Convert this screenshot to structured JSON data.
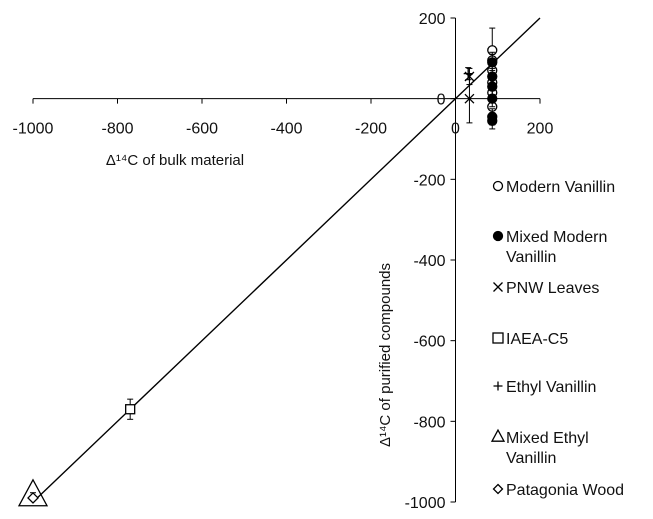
{
  "chart_data": {
    "type": "scatter",
    "xlabel": "Δ¹⁴C of bulk material",
    "ylabel": "Δ¹⁴C of purified compounds",
    "xlim": [
      -1000,
      200
    ],
    "ylim": [
      -1000,
      200
    ],
    "x_ticks": [
      "-1000",
      "-800",
      "-600",
      "-400",
      "-200",
      "0",
      "200"
    ],
    "y_ticks": [
      "200",
      "0",
      "-200",
      "-400",
      "-600",
      "-800",
      "-1000"
    ],
    "grid": false,
    "legend_position": "right",
    "reference_line": {
      "slope": 1,
      "intercept": 0
    },
    "series": [
      {
        "name": "Modern Vanillin",
        "marker": "open-circle",
        "points": [
          {
            "x": 87,
            "y": 120
          },
          {
            "x": 87,
            "y": 95
          },
          {
            "x": 87,
            "y": 70
          },
          {
            "x": 87,
            "y": 40
          },
          {
            "x": 87,
            "y": 15
          },
          {
            "x": 87,
            "y": -20
          }
        ],
        "errors": [
          55,
          20,
          20,
          20,
          20,
          20
        ]
      },
      {
        "name": "Mixed Modern Vanillin",
        "marker": "filled-circle",
        "points": [
          {
            "x": 87,
            "y": 90
          },
          {
            "x": 87,
            "y": 55
          },
          {
            "x": 87,
            "y": 30
          },
          {
            "x": 87,
            "y": 0
          },
          {
            "x": 87,
            "y": -45
          },
          {
            "x": 87,
            "y": -55
          }
        ],
        "errors": [
          20,
          20,
          20,
          20,
          20,
          20
        ]
      },
      {
        "name": "PNW Leaves",
        "marker": "x",
        "points": [
          {
            "x": 33,
            "y": 55
          },
          {
            "x": 33,
            "y": 0
          }
        ],
        "errors": [
          20,
          60
        ]
      },
      {
        "name": "IAEA-C5",
        "marker": "open-square",
        "points": [
          {
            "x": -770,
            "y": -770
          }
        ],
        "errors": [
          25
        ]
      },
      {
        "name": "Ethyl Vanillin",
        "marker": "plus",
        "points": [
          {
            "x": 30,
            "y": 62
          }
        ],
        "errors": [
          15
        ]
      },
      {
        "name": "Mixed Ethyl Vanillin",
        "marker": "open-triangle",
        "points": [
          {
            "x": -1000,
            "y": -985
          }
        ],
        "errors": [
          8
        ]
      },
      {
        "name": "Patagonia Wood",
        "marker": "open-diamond",
        "points": [
          {
            "x": -1000,
            "y": -990
          }
        ],
        "errors": [
          5
        ]
      }
    ]
  }
}
